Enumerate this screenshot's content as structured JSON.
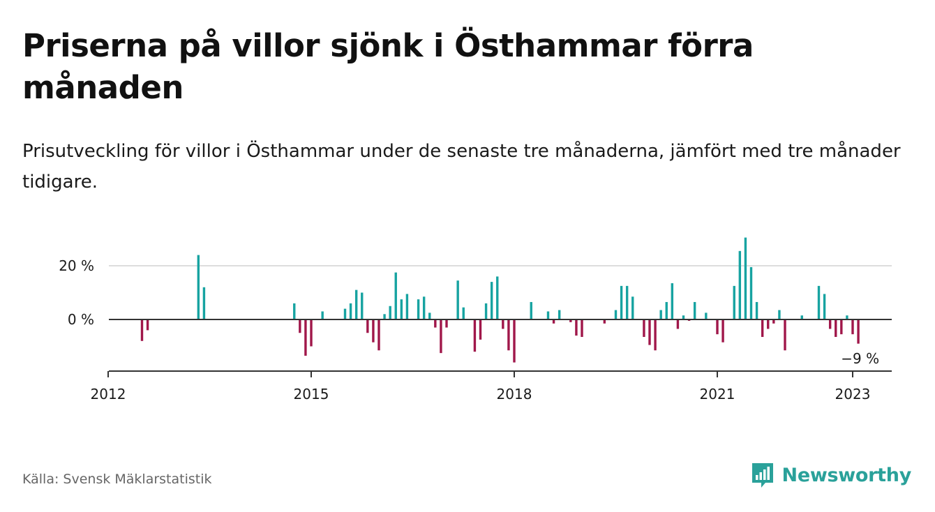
{
  "title": "Priserna på villor sjönk i Östhammar förra månaden",
  "subtitle": "Prisutveckling för villor i Östhammar under de senaste tre månaderna, jämfört med tre månader tidigare.",
  "source": "Källa: Svensk Mäklarstatistik",
  "brand": {
    "name": "Newsworthy",
    "icon": "newsworthy-logo-icon"
  },
  "colors": {
    "positive": "#17a3a1",
    "negative": "#a0174a",
    "axis": "#333333",
    "grid": "#dddddd"
  },
  "chart_data": {
    "type": "bar",
    "x_unit": "month",
    "x_ticks": [
      {
        "label": "2012",
        "x": "2012-01"
      },
      {
        "label": "2015",
        "x": "2015-01"
      },
      {
        "label": "2018",
        "x": "2018-01"
      },
      {
        "label": "2021",
        "x": "2021-01"
      },
      {
        "label": "2023",
        "x": "2023-01"
      }
    ],
    "y_ticks": [
      {
        "label": "0 %",
        "value": 0
      },
      {
        "label": "20 %",
        "value": 20
      }
    ],
    "ylim": [
      -19,
      33
    ],
    "xlim": [
      "2012-01",
      "2023-06"
    ],
    "grid": "horizontal",
    "last_value_label": "−9 %",
    "points": [
      {
        "x": "2012-07",
        "y": -8
      },
      {
        "x": "2012-08",
        "y": -4
      },
      {
        "x": "2013-05",
        "y": 24
      },
      {
        "x": "2013-06",
        "y": 12
      },
      {
        "x": "2014-10",
        "y": 6
      },
      {
        "x": "2014-11",
        "y": -5
      },
      {
        "x": "2014-12",
        "y": -13.5
      },
      {
        "x": "2015-01",
        "y": -10
      },
      {
        "x": "2015-03",
        "y": 3
      },
      {
        "x": "2015-07",
        "y": 4
      },
      {
        "x": "2015-08",
        "y": 6
      },
      {
        "x": "2015-09",
        "y": 11
      },
      {
        "x": "2015-10",
        "y": 10
      },
      {
        "x": "2015-11",
        "y": -5
      },
      {
        "x": "2015-12",
        "y": -8.5
      },
      {
        "x": "2016-01",
        "y": -11.5
      },
      {
        "x": "2016-02",
        "y": 2
      },
      {
        "x": "2016-03",
        "y": 5
      },
      {
        "x": "2016-04",
        "y": 17.5
      },
      {
        "x": "2016-05",
        "y": 7.5
      },
      {
        "x": "2016-06",
        "y": 9.5
      },
      {
        "x": "2016-08",
        "y": 7.5
      },
      {
        "x": "2016-09",
        "y": 8.5
      },
      {
        "x": "2016-10",
        "y": 2.5
      },
      {
        "x": "2016-11",
        "y": -3
      },
      {
        "x": "2016-12",
        "y": -12.5
      },
      {
        "x": "2017-01",
        "y": -3
      },
      {
        "x": "2017-03",
        "y": 14.5
      },
      {
        "x": "2017-04",
        "y": 4.5
      },
      {
        "x": "2017-06",
        "y": -12
      },
      {
        "x": "2017-07",
        "y": -7.5
      },
      {
        "x": "2017-08",
        "y": 6
      },
      {
        "x": "2017-09",
        "y": 14
      },
      {
        "x": "2017-10",
        "y": 16
      },
      {
        "x": "2017-11",
        "y": -3.5
      },
      {
        "x": "2017-12",
        "y": -11.5
      },
      {
        "x": "2018-01",
        "y": -16
      },
      {
        "x": "2018-04",
        "y": 6.5
      },
      {
        "x": "2018-07",
        "y": 3
      },
      {
        "x": "2018-08",
        "y": -1.5
      },
      {
        "x": "2018-09",
        "y": 3.5
      },
      {
        "x": "2018-11",
        "y": -1
      },
      {
        "x": "2018-12",
        "y": -6
      },
      {
        "x": "2019-01",
        "y": -6.5
      },
      {
        "x": "2019-05",
        "y": -1.5
      },
      {
        "x": "2019-07",
        "y": 3.5
      },
      {
        "x": "2019-08",
        "y": 12.5
      },
      {
        "x": "2019-09",
        "y": 12.5
      },
      {
        "x": "2019-10",
        "y": 8.5
      },
      {
        "x": "2019-12",
        "y": -6.5
      },
      {
        "x": "2020-01",
        "y": -9.5
      },
      {
        "x": "2020-02",
        "y": -11.5
      },
      {
        "x": "2020-03",
        "y": 3.5
      },
      {
        "x": "2020-04",
        "y": 6.5
      },
      {
        "x": "2020-05",
        "y": 13.5
      },
      {
        "x": "2020-06",
        "y": -3.5
      },
      {
        "x": "2020-07",
        "y": 1.5
      },
      {
        "x": "2020-08",
        "y": -0.5
      },
      {
        "x": "2020-09",
        "y": 6.5
      },
      {
        "x": "2020-11",
        "y": 2.5
      },
      {
        "x": "2021-01",
        "y": -5.5
      },
      {
        "x": "2021-02",
        "y": -8.5
      },
      {
        "x": "2021-04",
        "y": 12.5
      },
      {
        "x": "2021-05",
        "y": 25.5
      },
      {
        "x": "2021-06",
        "y": 30.5
      },
      {
        "x": "2021-07",
        "y": 19.5
      },
      {
        "x": "2021-08",
        "y": 6.5
      },
      {
        "x": "2021-09",
        "y": -6.5
      },
      {
        "x": "2021-10",
        "y": -3.5
      },
      {
        "x": "2021-11",
        "y": -1.5
      },
      {
        "x": "2021-12",
        "y": 3.5
      },
      {
        "x": "2022-01",
        "y": -11.5
      },
      {
        "x": "2022-04",
        "y": 1.5
      },
      {
        "x": "2022-07",
        "y": 12.5
      },
      {
        "x": "2022-08",
        "y": 9.5
      },
      {
        "x": "2022-09",
        "y": -3.5
      },
      {
        "x": "2022-10",
        "y": -6.5
      },
      {
        "x": "2022-11",
        "y": -5.5
      },
      {
        "x": "2022-12",
        "y": 1.5
      },
      {
        "x": "2023-01",
        "y": -5.5
      },
      {
        "x": "2023-02",
        "y": -9
      }
    ]
  }
}
